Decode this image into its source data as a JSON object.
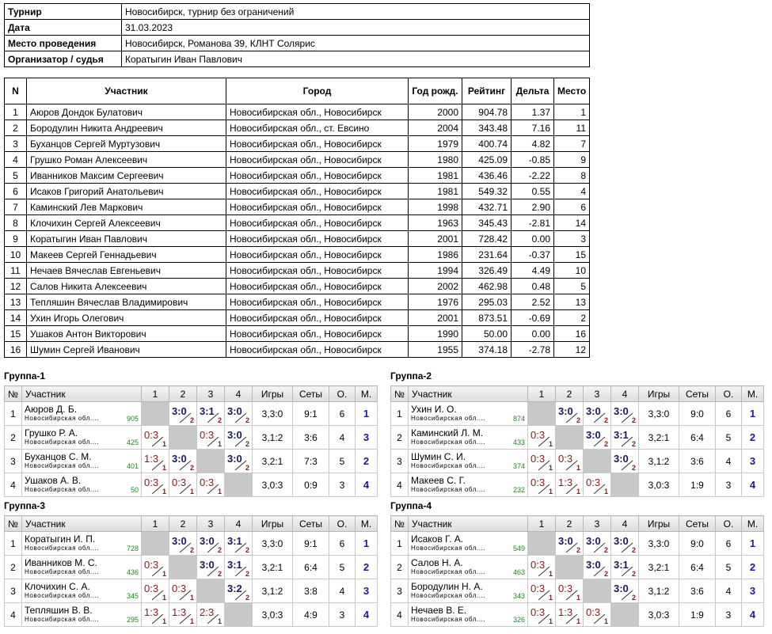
{
  "info": {
    "rows": [
      {
        "label": "Турнир",
        "value": "Новосибирск, турнир без ограничений"
      },
      {
        "label": "Дата",
        "value": "31.03.2023"
      },
      {
        "label": "Место проведения",
        "value": "Новосибирск, Романова 39, КЛНТ Солярис"
      },
      {
        "label": "Организатор / судья",
        "value": "Коратыгин Иван Павлович"
      }
    ]
  },
  "participants": {
    "columns": [
      "N",
      "Участник",
      "Город",
      "Год рожд.",
      "Рейтинг",
      "Дельта",
      "Место"
    ],
    "rows": [
      [
        "1",
        "Аюров Дондок Булатович",
        "Новосибирская обл., Новосибирск",
        "2000",
        "904.78",
        "1.37",
        "1"
      ],
      [
        "2",
        "Бородулин Никита Андреевич",
        "Новосибирская обл., ст. Евсино",
        "2004",
        "343.48",
        "7.16",
        "11"
      ],
      [
        "3",
        "Буханцов Сергей Муртузович",
        "Новосибирская обл., Новосибирск",
        "1979",
        "400.74",
        "4.82",
        "7"
      ],
      [
        "4",
        "Грушко Роман Алексеевич",
        "Новосибирская обл., Новосибирск",
        "1980",
        "425.09",
        "-0.85",
        "9"
      ],
      [
        "5",
        "Иванников Максим Сергеевич",
        "Новосибирская обл., Новосибирск",
        "1981",
        "436.46",
        "-2.22",
        "8"
      ],
      [
        "6",
        "Исаков Григорий Анатольевич",
        "Новосибирская обл., Новосибирск",
        "1981",
        "549.32",
        "0.55",
        "4"
      ],
      [
        "7",
        "Каминский Лев Маркович",
        "Новосибирская обл., Новосибирск",
        "1998",
        "432.71",
        "2.90",
        "6"
      ],
      [
        "8",
        "Клочихин Сергей Алексеевич",
        "Новосибирская обл., Новосибирск",
        "1963",
        "345.43",
        "-2.81",
        "14"
      ],
      [
        "9",
        "Коратыгин Иван Павлович",
        "Новосибирская обл., Новосибирск",
        "2001",
        "728.42",
        "0.00",
        "3"
      ],
      [
        "10",
        "Макеев Сергей Геннадьевич",
        "Новосибирская обл., Новосибирск",
        "1986",
        "231.64",
        "-0.37",
        "15"
      ],
      [
        "11",
        "Нечаев Вячеслав Евгеньевич",
        "Новосибирская обл., Новосибирск",
        "1994",
        "326.49",
        "4.49",
        "10"
      ],
      [
        "12",
        "Салов Никита Алексеевич",
        "Новосибирская обл., Новосибирск",
        "2002",
        "462.98",
        "0.48",
        "5"
      ],
      [
        "13",
        "Тепляшин Вячеслав Владимирович",
        "Новосибирская обл., Новосибирск",
        "1976",
        "295.03",
        "2.52",
        "13"
      ],
      [
        "14",
        "Ухин Игорь Олегович",
        "Новосибирская обл., Новосибирск",
        "2001",
        "873.51",
        "-0.69",
        "2"
      ],
      [
        "15",
        "Ушаков Антон Викторович",
        "Новосибирская обл., Новосибирск",
        "1990",
        "50.00",
        "0.00",
        "16"
      ],
      [
        "16",
        "Шумин Сергей Иванович",
        "Новосибирская обл., Новосибирск",
        "1955",
        "374.18",
        "-2.78",
        "12"
      ]
    ]
  },
  "group_columns": [
    "№",
    "Участник",
    "1",
    "2",
    "3",
    "4",
    "Игры",
    "Сеты",
    "О.",
    "М."
  ],
  "groups": [
    {
      "title": "Группа-1",
      "rows": [
        {
          "num": 1,
          "name": "Аюров Д. Б.",
          "city": "Новосибирская обл....",
          "rating": 905,
          "results": [
            null,
            {
              "score": "3:0",
              "pts": 2
            },
            {
              "score": "3:1",
              "pts": 2
            },
            {
              "score": "3:0",
              "pts": 2
            }
          ],
          "games": "3,3:0",
          "sets": "9:1",
          "points": 6,
          "place": 1
        },
        {
          "num": 2,
          "name": "Грушко Р. А.",
          "city": "Новосибирская обл....",
          "rating": 425,
          "results": [
            {
              "score": "0:3",
              "pts": 1
            },
            null,
            {
              "score": "0:3",
              "pts": 1
            },
            {
              "score": "3:0",
              "pts": 2
            }
          ],
          "games": "3,1:2",
          "sets": "3:6",
          "points": 4,
          "place": 3
        },
        {
          "num": 3,
          "name": "Буханцов С. М.",
          "city": "Новосибирская обл....",
          "rating": 401,
          "results": [
            {
              "score": "1:3",
              "pts": 1
            },
            {
              "score": "3:0",
              "pts": 2
            },
            null,
            {
              "score": "3:0",
              "pts": 2
            }
          ],
          "games": "3,2:1",
          "sets": "7:3",
          "points": 5,
          "place": 2
        },
        {
          "num": 4,
          "name": "Ушаков А. В.",
          "city": "Новосибирская обл....",
          "rating": 50,
          "results": [
            {
              "score": "0:3",
              "pts": 1
            },
            {
              "score": "0:3",
              "pts": 1
            },
            {
              "score": "0:3",
              "pts": 1
            },
            null
          ],
          "games": "3,0:3",
          "sets": "0:9",
          "points": 3,
          "place": 4
        }
      ]
    },
    {
      "title": "Группа-2",
      "rows": [
        {
          "num": 1,
          "name": "Ухин И. О.",
          "city": "Новосибирская обл....",
          "rating": 874,
          "results": [
            null,
            {
              "score": "3:0",
              "pts": 2
            },
            {
              "score": "3:0",
              "pts": 2
            },
            {
              "score": "3:0",
              "pts": 2
            }
          ],
          "games": "3,3:0",
          "sets": "9:0",
          "points": 6,
          "place": 1
        },
        {
          "num": 2,
          "name": "Каминский Л. М.",
          "city": "Новосибирская обл....",
          "rating": 433,
          "results": [
            {
              "score": "0:3",
              "pts": 1
            },
            null,
            {
              "score": "3:0",
              "pts": 2
            },
            {
              "score": "3:1",
              "pts": 2
            }
          ],
          "games": "3,2:1",
          "sets": "6:4",
          "points": 5,
          "place": 2
        },
        {
          "num": 3,
          "name": "Шумин С. И.",
          "city": "Новосибирская обл....",
          "rating": 374,
          "results": [
            {
              "score": "0:3",
              "pts": 1
            },
            {
              "score": "0:3",
              "pts": 1
            },
            null,
            {
              "score": "3:0",
              "pts": 2
            }
          ],
          "games": "3,1:2",
          "sets": "3:6",
          "points": 4,
          "place": 3
        },
        {
          "num": 4,
          "name": "Макеев С. Г.",
          "city": "Новосибирская обл....",
          "rating": 232,
          "results": [
            {
              "score": "0:3",
              "pts": 1
            },
            {
              "score": "1:3",
              "pts": 1
            },
            {
              "score": "0:3",
              "pts": 1
            },
            null
          ],
          "games": "3,0:3",
          "sets": "1:9",
          "points": 3,
          "place": 4
        }
      ]
    },
    {
      "title": "Группа-3",
      "rows": [
        {
          "num": 1,
          "name": "Коратыгин И. П.",
          "city": "Новосибирская обл....",
          "rating": 728,
          "results": [
            null,
            {
              "score": "3:0",
              "pts": 2
            },
            {
              "score": "3:0",
              "pts": 2
            },
            {
              "score": "3:1",
              "pts": 2
            }
          ],
          "games": "3,3:0",
          "sets": "9:1",
          "points": 6,
          "place": 1
        },
        {
          "num": 2,
          "name": "Иванников М. С.",
          "city": "Новосибирская обл....",
          "rating": 436,
          "results": [
            {
              "score": "0:3",
              "pts": 1
            },
            null,
            {
              "score": "3:0",
              "pts": 2
            },
            {
              "score": "3:1",
              "pts": 2
            }
          ],
          "games": "3,2:1",
          "sets": "6:4",
          "points": 5,
          "place": 2
        },
        {
          "num": 3,
          "name": "Клочихин С. А.",
          "city": "Новосибирская обл....",
          "rating": 345,
          "results": [
            {
              "score": "0:3",
              "pts": 1
            },
            {
              "score": "0:3",
              "pts": 1
            },
            null,
            {
              "score": "3:2",
              "pts": 2
            }
          ],
          "games": "3,1:2",
          "sets": "3:8",
          "points": 4,
          "place": 3
        },
        {
          "num": 4,
          "name": "Тепляшин В. В.",
          "city": "Новосибирская обл....",
          "rating": 295,
          "results": [
            {
              "score": "1:3",
              "pts": 1
            },
            {
              "score": "1:3",
              "pts": 1
            },
            {
              "score": "2:3",
              "pts": 1
            },
            null
          ],
          "games": "3,0:3",
          "sets": "4:9",
          "points": 3,
          "place": 4
        }
      ]
    },
    {
      "title": "Группа-4",
      "rows": [
        {
          "num": 1,
          "name": "Исаков Г. А.",
          "city": "Новосибирская обл....",
          "rating": 549,
          "results": [
            null,
            {
              "score": "3:0",
              "pts": 2
            },
            {
              "score": "3:0",
              "pts": 2
            },
            {
              "score": "3:0",
              "pts": 2
            }
          ],
          "games": "3,3:0",
          "sets": "9:0",
          "points": 6,
          "place": 1
        },
        {
          "num": 2,
          "name": "Салов Н. А.",
          "city": "Новосибирская обл....",
          "rating": 463,
          "results": [
            {
              "score": "0:3",
              "pts": 1
            },
            null,
            {
              "score": "3:0",
              "pts": 2
            },
            {
              "score": "3:1",
              "pts": 2
            }
          ],
          "games": "3,2:1",
          "sets": "6:4",
          "points": 5,
          "place": 2
        },
        {
          "num": 3,
          "name": "Бородулин Н. А.",
          "city": "Новосибирская обл....",
          "rating": 343,
          "results": [
            {
              "score": "0:3",
              "pts": 1
            },
            {
              "score": "0:3",
              "pts": 1
            },
            null,
            {
              "score": "3:0",
              "pts": 2
            }
          ],
          "games": "3,1:2",
          "sets": "3:6",
          "points": 4,
          "place": 3
        },
        {
          "num": 4,
          "name": "Нечаев В. Е.",
          "city": "Новосибирская обл....",
          "rating": 326,
          "results": [
            {
              "score": "0:3",
              "pts": 1
            },
            {
              "score": "1:3",
              "pts": 1
            },
            {
              "score": "0:3",
              "pts": 1
            },
            null
          ],
          "games": "3,0:3",
          "sets": "1:9",
          "points": 3,
          "place": 4
        }
      ]
    }
  ]
}
